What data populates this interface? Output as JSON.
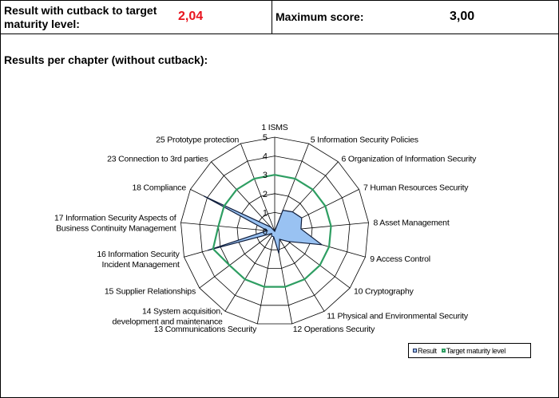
{
  "header": {
    "result_label": "Result with cutback to target maturity level:",
    "result_value": "2,04",
    "max_label": "Maximum score:",
    "max_value": "3,00"
  },
  "section_title": "Results per chapter (without cutback):",
  "colors": {
    "result_fill": "#99c2f2",
    "result_line": "#101e3c",
    "target_line": "#2e9e62",
    "grid": "#000000",
    "result_value_text": "#e8141e"
  },
  "chart_data": {
    "type": "radar",
    "title": "",
    "rmin": 0,
    "rmax": 5,
    "ticks": [
      "0",
      "1",
      "2",
      "3",
      "4",
      "5"
    ],
    "categories": [
      "1 ISMS",
      "5 Information Security Policies",
      "6 Organization of Information Security",
      "7 Human Resources Security",
      "8 Asset Management",
      "9 Access Control",
      "10 Cryptography",
      "11 Physical and Environmental Security",
      "12 Operations Security",
      "13 Communications Security",
      "14 System acquisition, development and maintenance",
      "15 Supplier Relationships",
      "16 Information Security Incident Management",
      "17 Information Security Aspects of Business Continuity Management",
      "18 Compliance",
      "23 Connection to 3rd parties",
      "25 Prototype protection"
    ],
    "series": [
      {
        "name": "Result",
        "values": [
          0,
          1.2,
          1.4,
          1.6,
          1.4,
          2.6,
          0.9,
          0.5,
          1.2,
          0.3,
          0.3,
          0.2,
          3.7,
          0.4,
          4.2,
          0.3,
          0
        ]
      },
      {
        "name": "Target maturity level",
        "values": [
          3.0,
          3.0,
          3.0,
          3.0,
          3.0,
          3.0,
          3.0,
          3.0,
          3.0,
          3.0,
          3.0,
          3.0,
          3.4,
          3.0,
          3.0,
          3.0,
          3.0
        ]
      }
    ],
    "legend": "bottom-right"
  }
}
